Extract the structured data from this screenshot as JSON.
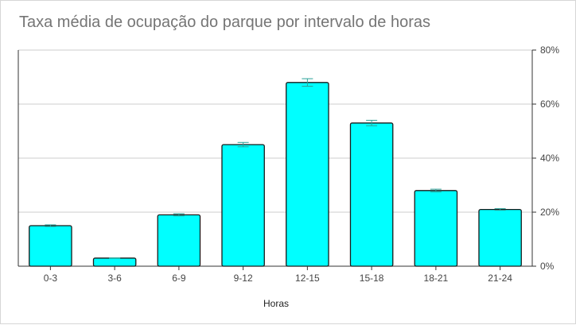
{
  "chart_data": {
    "type": "bar",
    "title": "Taxa média de ocupação do parque por intervalo de horas",
    "xlabel": "Horas",
    "ylabel": "",
    "categories": [
      "0-3",
      "3-6",
      "6-9",
      "9-12",
      "12-15",
      "15-18",
      "18-21",
      "21-24"
    ],
    "series": [
      {
        "values": [
          15,
          3,
          19,
          45,
          68,
          53,
          28,
          21
        ],
        "error": [
          0.3,
          0.1,
          0.4,
          0.8,
          1.4,
          1.0,
          0.5,
          0.3
        ]
      }
    ],
    "ylim": [
      0,
      80
    ],
    "yticks": [
      0,
      20,
      40,
      60,
      80
    ],
    "ytick_labels": [
      "0%",
      "20%",
      "40%",
      "60%",
      "80%"
    ],
    "yaxis_position": "right",
    "grid": true,
    "legend": "none",
    "colors": {
      "bar_fill": "#00ffff",
      "bar_stroke": "#1a1a1a",
      "error_bar": "#2aa198",
      "grid": "#cccccc",
      "title": "#757575"
    }
  }
}
